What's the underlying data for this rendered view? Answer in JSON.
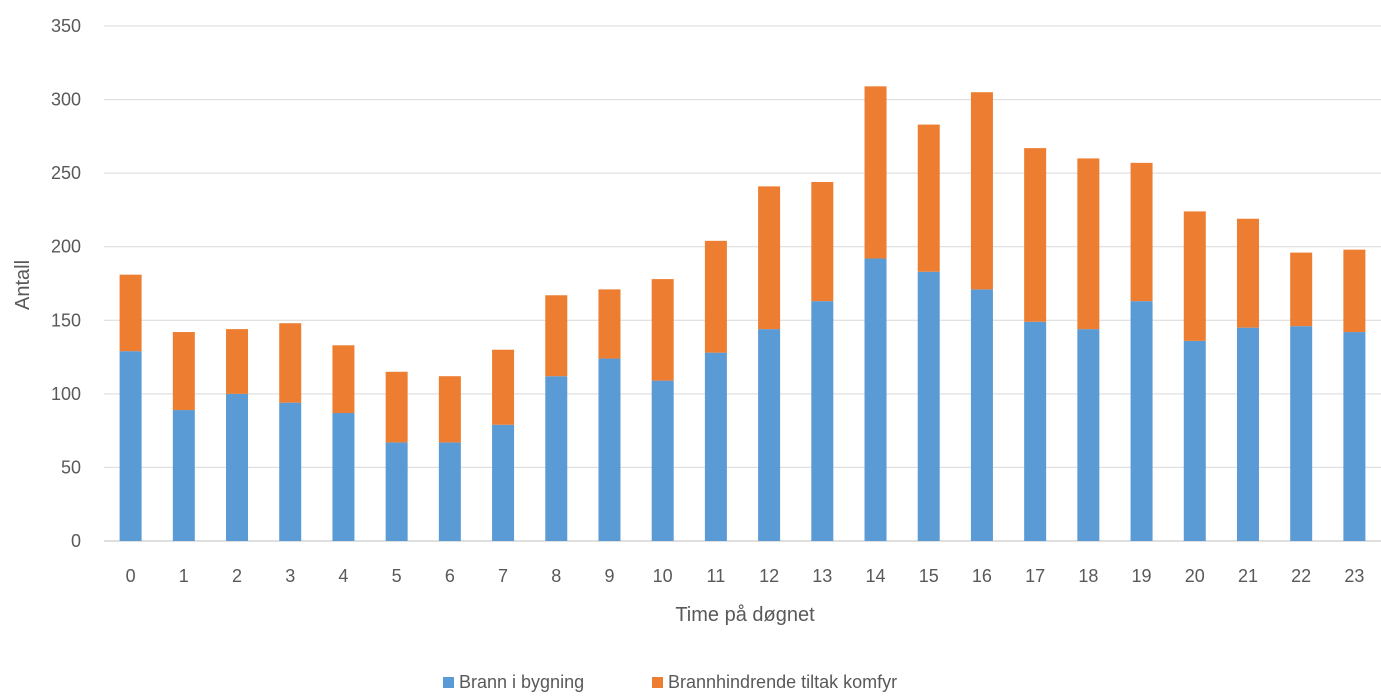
{
  "chart_data": {
    "type": "bar",
    "stacked": true,
    "xlabel": "Time på døgnet",
    "ylabel": "Antall",
    "ylim": [
      0,
      350
    ],
    "yticks": [
      0,
      50,
      100,
      150,
      200,
      250,
      300,
      350
    ],
    "grid": true,
    "legend_position": "bottom",
    "categories": [
      "0",
      "1",
      "2",
      "3",
      "4",
      "5",
      "6",
      "7",
      "8",
      "9",
      "10",
      "11",
      "12",
      "13",
      "14",
      "15",
      "16",
      "17",
      "18",
      "19",
      "20",
      "21",
      "22",
      "23"
    ],
    "series": [
      {
        "name": "Brann i bygning",
        "color": "#5B9BD5",
        "values": [
          129,
          89,
          100,
          94,
          87,
          67,
          67,
          79,
          112,
          124,
          109,
          128,
          144,
          163,
          192,
          183,
          171,
          149,
          144,
          163,
          136,
          145,
          146,
          142
        ]
      },
      {
        "name": "Brannhindrende tiltak komfyr",
        "color": "#ED7D31",
        "values": [
          52,
          53,
          44,
          54,
          46,
          48,
          45,
          51,
          55,
          47,
          69,
          76,
          97,
          81,
          117,
          100,
          134,
          118,
          116,
          94,
          88,
          74,
          50,
          56
        ]
      }
    ]
  }
}
